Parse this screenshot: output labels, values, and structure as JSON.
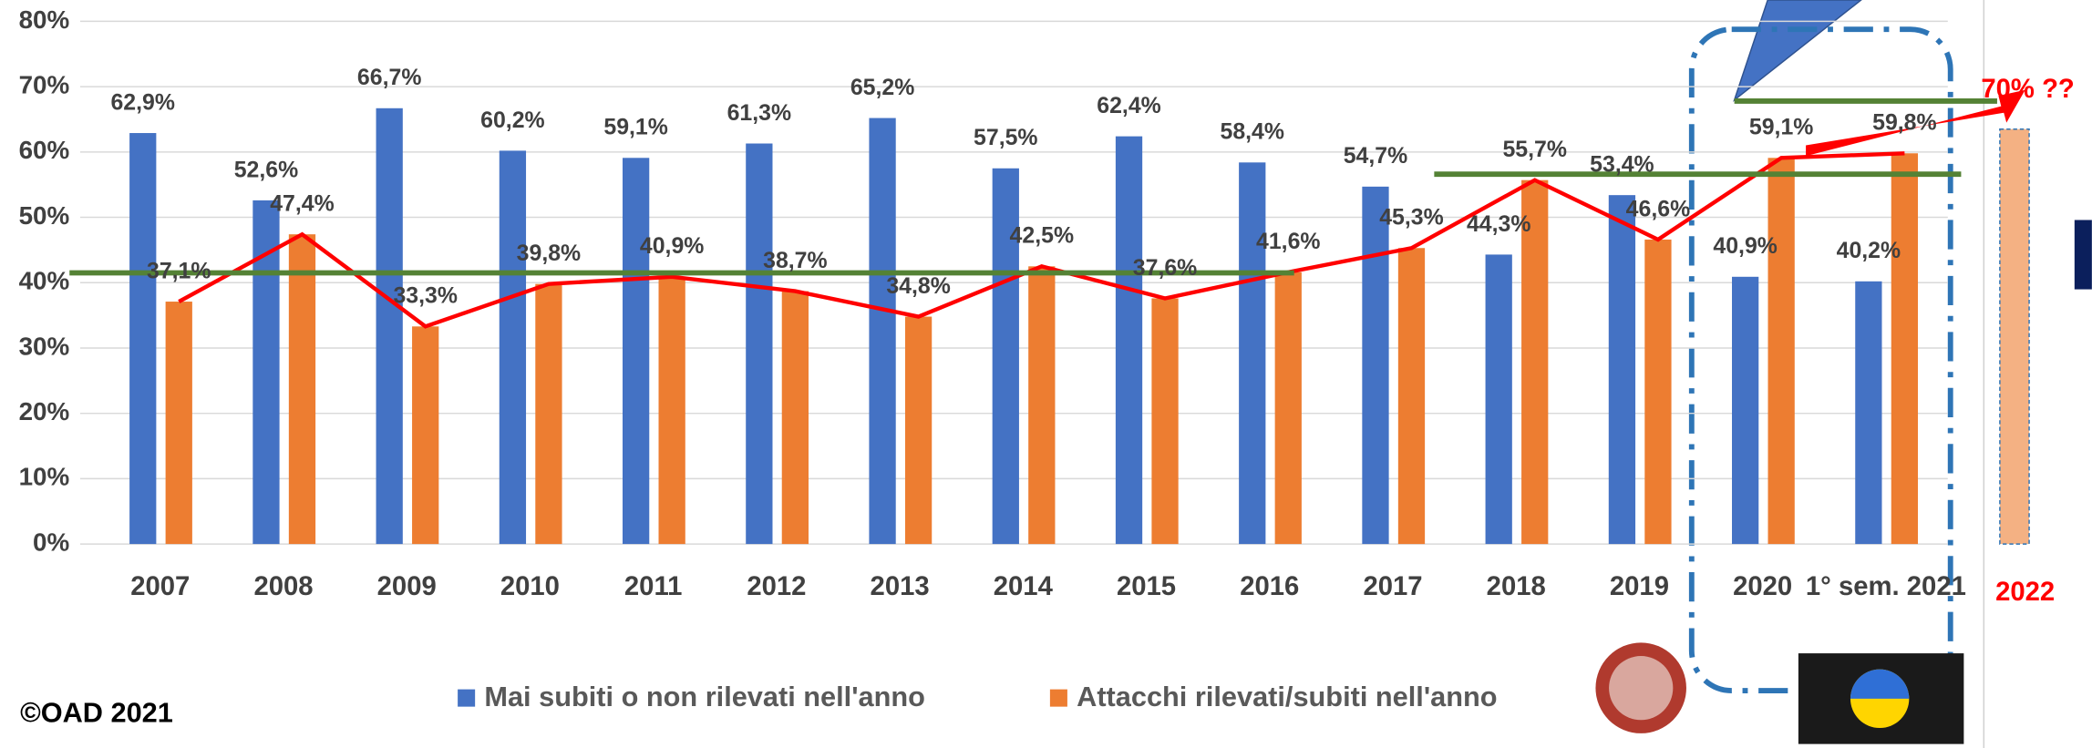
{
  "chart_data": {
    "type": "bar",
    "categories": [
      "2007",
      "2008",
      "2009",
      "2010",
      "2011",
      "2012",
      "2013",
      "2014",
      "2015",
      "2016",
      "2017",
      "2018",
      "2019",
      "2020",
      "1° sem. 2021"
    ],
    "series": [
      {
        "name": "Mai subiti o non rilevati nell'anno",
        "color": "#4472c4",
        "values": [
          62.9,
          52.6,
          66.7,
          60.2,
          59.1,
          61.3,
          65.2,
          57.5,
          62.4,
          58.4,
          54.7,
          44.3,
          53.4,
          40.9,
          40.2
        ],
        "value_labels": [
          "62,9%",
          "52,6%",
          "66,7%",
          "60,2%",
          "59,1%",
          "61,3%",
          "65,2%",
          "57,5%",
          "62,4%",
          "58,4%",
          "54,7%",
          "44,3%",
          "53,4%",
          "40,9%",
          "40,2%"
        ]
      },
      {
        "name": "Attacchi rilevati/subiti nell'anno",
        "color": "#ed7d31",
        "values": [
          37.1,
          47.4,
          33.3,
          39.8,
          40.9,
          38.7,
          34.8,
          42.5,
          37.6,
          41.6,
          45.3,
          55.7,
          46.6,
          59.1,
          59.8
        ],
        "value_labels": [
          "37,1%",
          "47,4%",
          "33,3%",
          "39,8%",
          "40,9%",
          "38,7%",
          "34,8%",
          "42,5%",
          "37,6%",
          "41,6%",
          "45,3%",
          "55,7%",
          "46,6%",
          "59,1%",
          "59,8%"
        ]
      }
    ],
    "ylim": [
      0,
      80
    ],
    "yticks": [
      {
        "value": 0,
        "label": "0%"
      },
      {
        "value": 10,
        "label": "10%"
      },
      {
        "value": 20,
        "label": "20%"
      },
      {
        "value": 30,
        "label": "30%"
      },
      {
        "value": 40,
        "label": "40%"
      },
      {
        "value": 50,
        "label": "50%"
      },
      {
        "value": 60,
        "label": "60%"
      },
      {
        "value": 70,
        "label": "70%"
      },
      {
        "value": 80,
        "label": "80%"
      }
    ],
    "grid": true,
    "trend_line_color": "#ff0000",
    "levels": [
      41.5,
      56.6,
      67.8
    ],
    "level_color": "#548235",
    "projection": {
      "label": "2022",
      "value": 63.5,
      "annotation": "70% ??",
      "color": "#f4b183"
    },
    "credit": "©OAD 2021"
  }
}
